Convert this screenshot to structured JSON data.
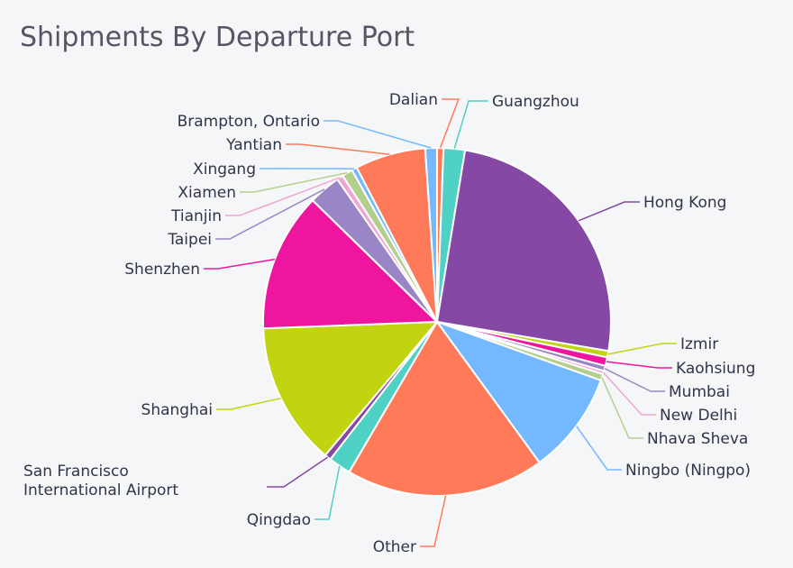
{
  "chart_data": {
    "type": "pie",
    "title": "Shipments By Departure Port",
    "slices": [
      {
        "label": "Dalian",
        "value": 0.6,
        "color": "#ff7a59"
      },
      {
        "label": "Guangzhou",
        "value": 2.0,
        "color": "#4fd1c5"
      },
      {
        "label": "Hong Kong",
        "value": 25.3,
        "color": "#8549a5"
      },
      {
        "label": "Izmir",
        "value": 0.6,
        "color": "#c2d40f"
      },
      {
        "label": "Kaohsiung",
        "value": 0.8,
        "color": "#ee169f"
      },
      {
        "label": "Mumbai",
        "value": 0.5,
        "color": "#9a86c6"
      },
      {
        "label": "New Delhi",
        "value": 0.3,
        "color": "#f0a6d2"
      },
      {
        "label": "Nhava Sheva",
        "value": 0.6,
        "color": "#b3cf8c"
      },
      {
        "label": "Ningbo (Ningpo)",
        "value": 9.6,
        "color": "#74b8ff"
      },
      {
        "label": "Other",
        "value": 18.6,
        "color": "#ff7a59"
      },
      {
        "label": "Qingdao",
        "value": 2.1,
        "color": "#4fd1c5"
      },
      {
        "label": "San Francisco International Airport",
        "value": 0.6,
        "color": "#8549a5"
      },
      {
        "label": "Shanghai",
        "value": 13.4,
        "color": "#c2d40f"
      },
      {
        "label": "Shenzhen",
        "value": 13.0,
        "color": "#ee169f"
      },
      {
        "label": "Taipei",
        "value": 3.0,
        "color": "#9a86c6"
      },
      {
        "label": "Tianjin",
        "value": 0.6,
        "color": "#f0a6d2"
      },
      {
        "label": "Xiamen",
        "value": 1.0,
        "color": "#b3cf8c"
      },
      {
        "label": "Xingang",
        "value": 0.5,
        "color": "#74b8ff"
      },
      {
        "label": "Yantian",
        "value": 6.6,
        "color": "#ff7a59"
      },
      {
        "label": "Brampton, Ontario",
        "value": 1.1,
        "color": "#74b8ff"
      }
    ]
  }
}
